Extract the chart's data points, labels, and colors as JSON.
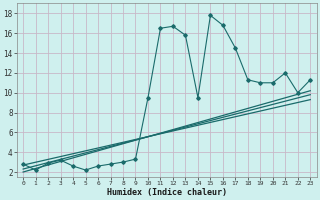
{
  "title": "",
  "xlabel": "Humidex (Indice chaleur)",
  "bg_color": "#cff0ee",
  "grid_color": "#c8b8c8",
  "line_color": "#1a6b6b",
  "x_data": [
    0,
    1,
    2,
    3,
    4,
    5,
    6,
    7,
    8,
    9,
    10,
    11,
    12,
    13,
    14,
    15,
    16,
    17,
    18,
    19,
    20,
    21,
    22,
    23
  ],
  "y_data": [
    2.8,
    2.2,
    2.9,
    3.2,
    2.6,
    2.2,
    2.6,
    2.8,
    3.0,
    3.3,
    9.5,
    16.5,
    16.7,
    15.8,
    9.5,
    17.8,
    16.8,
    14.5,
    11.3,
    11.0,
    11.0,
    12.0,
    10.0,
    11.3
  ],
  "reg_lines": [
    [
      0.0,
      23.0,
      2.0,
      10.2
    ],
    [
      0.0,
      23.0,
      2.3,
      9.8
    ],
    [
      0.0,
      23.0,
      2.7,
      9.3
    ]
  ],
  "xlim": [
    -0.5,
    23.5
  ],
  "ylim": [
    1.5,
    19.0
  ],
  "yticks": [
    2,
    4,
    6,
    8,
    10,
    12,
    14,
    16,
    18
  ],
  "xticks": [
    0,
    1,
    2,
    3,
    4,
    5,
    6,
    7,
    8,
    9,
    10,
    11,
    12,
    13,
    14,
    15,
    16,
    17,
    18,
    19,
    20,
    21,
    22,
    23
  ],
  "xtick_labels": [
    "0",
    "1",
    "2",
    "3",
    "4",
    "5",
    "6",
    "7",
    "8",
    "9",
    "10",
    "11",
    "12",
    "13",
    "14",
    "15",
    "16",
    "17",
    "18",
    "19",
    "20",
    "21",
    "22",
    "23"
  ]
}
